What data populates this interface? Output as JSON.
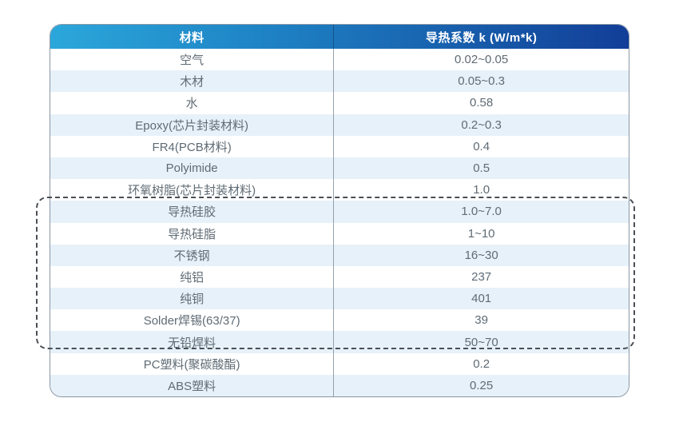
{
  "chart_data": {
    "type": "table",
    "title": "",
    "columns": [
      "材料",
      "导热系数 k (W/m*k)"
    ],
    "rows": [
      {
        "material": "空气",
        "k": "0.02~0.05",
        "highlighted": false
      },
      {
        "material": "木材",
        "k": "0.05~0.3",
        "highlighted": false
      },
      {
        "material": "水",
        "k": "0.58",
        "highlighted": false
      },
      {
        "material": "Epoxy(芯片封装材料)",
        "k": "0.2~0.3",
        "highlighted": false
      },
      {
        "material": "FR4(PCB材料)",
        "k": "0.4",
        "highlighted": false
      },
      {
        "material": "Polyimide",
        "k": "0.5",
        "highlighted": false
      },
      {
        "material": "环氧树脂(芯片封装材料)",
        "k": "1.0",
        "highlighted": false
      },
      {
        "material": "导热硅胶",
        "k": "1.0~7.0",
        "highlighted": true
      },
      {
        "material": "导热硅脂",
        "k": "1~10",
        "highlighted": true
      },
      {
        "material": "不锈钢",
        "k": "16~30",
        "highlighted": true
      },
      {
        "material": "纯铝",
        "k": "237",
        "highlighted": true
      },
      {
        "material": "纯铜",
        "k": "401",
        "highlighted": true
      },
      {
        "material": "Solder焊锡(63/37)",
        "k": "39",
        "highlighted": true
      },
      {
        "material": "无铅焊料",
        "k": "50~70",
        "highlighted": true
      },
      {
        "material": "PC塑料(聚碳酸酯)",
        "k": "0.2",
        "highlighted": false
      },
      {
        "material": "ABS塑料",
        "k": "0.25",
        "highlighted": false
      }
    ],
    "legend_position": "none",
    "grid": false,
    "notes": "rows 导热硅胶 through 无铅焊料 enclosed by dashed rounded rectangle"
  },
  "colors": {
    "header_gradient_start": "#2BA7DB",
    "header_gradient_end": "#123E97",
    "header_text": "#FFFFFF",
    "row_alt_background": "#E7F1F9",
    "row_background": "#FFFFFF",
    "body_text": "#5F6B74",
    "table_border": "#8A97A5",
    "column_divider": "#93A0AC",
    "dashed_box_border": "#4A4F55"
  }
}
